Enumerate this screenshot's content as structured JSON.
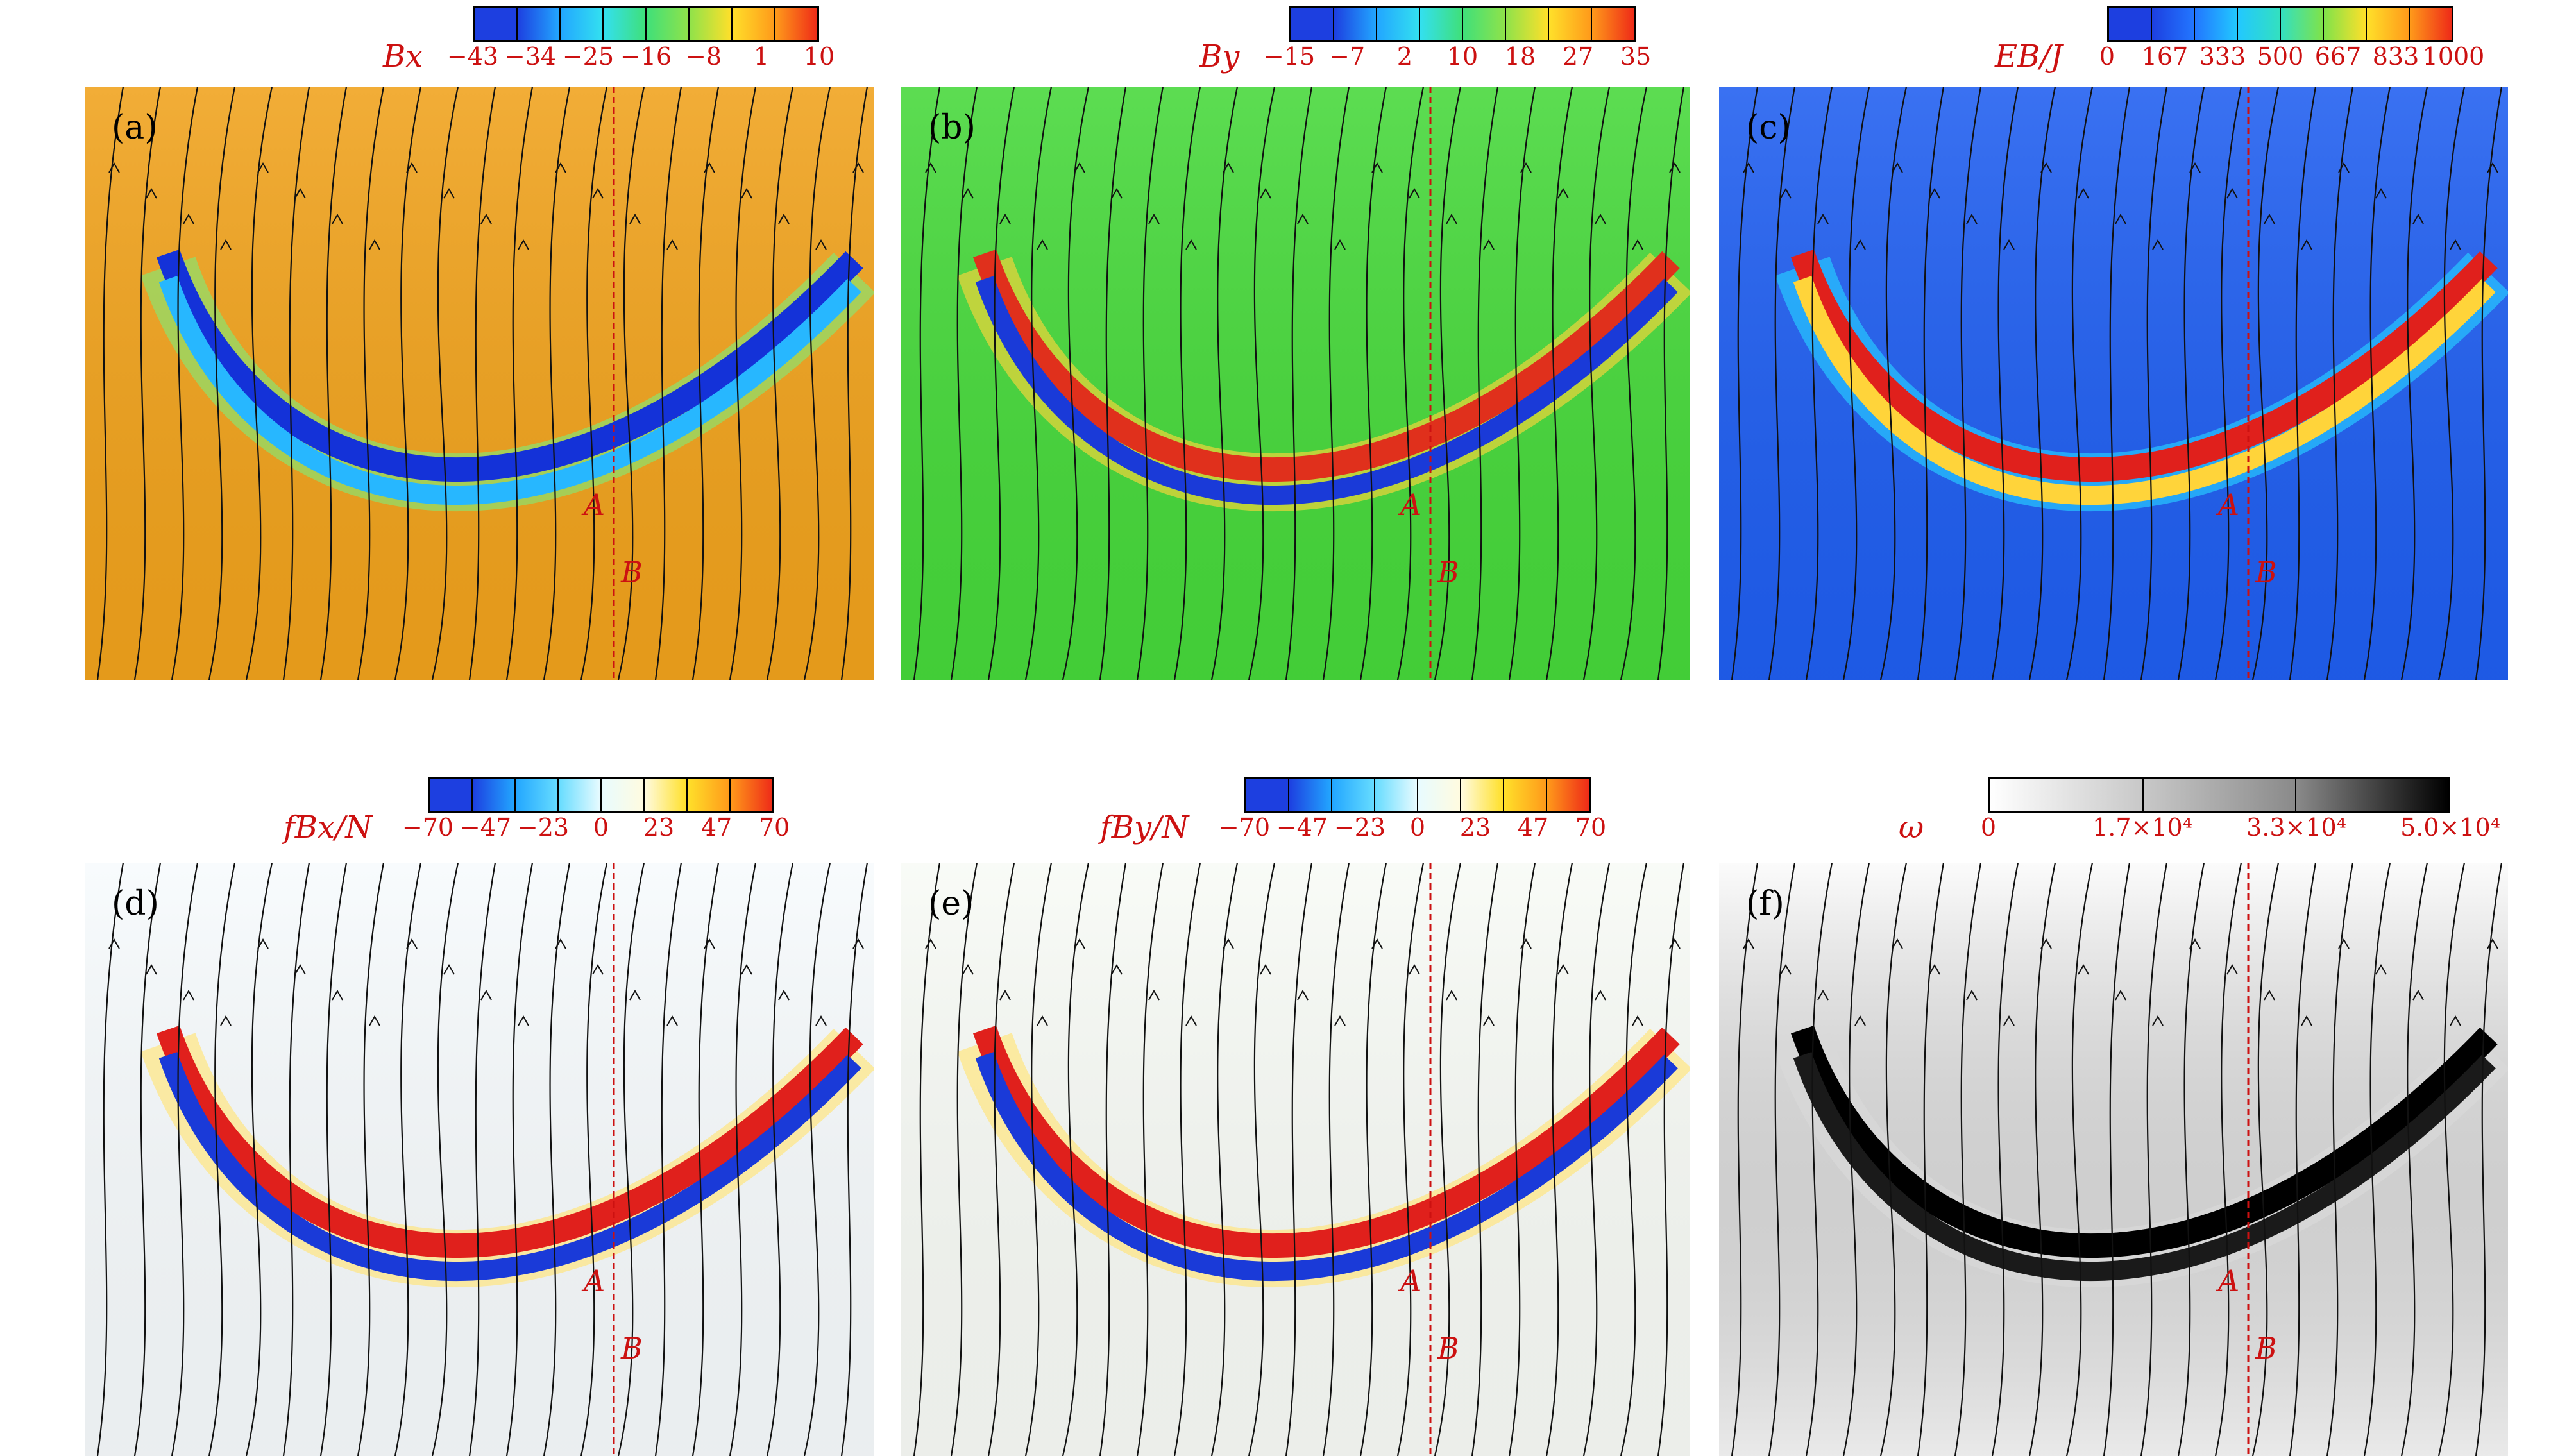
{
  "panels": [
    {
      "id": "a",
      "label": "(a)",
      "cbar_title": "B_x",
      "cbar_title_display": "Bx",
      "ticks": [
        "−43",
        "−34",
        "−25",
        "−16",
        "−8",
        "1",
        "10"
      ],
      "cbar_colors": [
        "#1d3fe0",
        "#22a6ff",
        "#33e0f0",
        "#3fe07a",
        "#8fe24a",
        "#ffe02a",
        "#ff9a1a",
        "#ee2b18"
      ],
      "background": "#f0a21c",
      "band_colors": [
        "#1432d8",
        "#27b7ff",
        "#8ce36e"
      ],
      "point_a": "A",
      "point_b": "B"
    },
    {
      "id": "b",
      "label": "(b)",
      "cbar_title_display": "By",
      "ticks": [
        "−15",
        "−7",
        "2",
        "10",
        "18",
        "27",
        "35"
      ],
      "cbar_colors": [
        "#1d3fe0",
        "#22a6ff",
        "#33e0f0",
        "#3fe07a",
        "#8fe24a",
        "#ffe02a",
        "#ff9a1a",
        "#ee2b18"
      ],
      "background": "#46d83a",
      "band_colors": [
        "#e0301c",
        "#1a3ad8",
        "#f0d43a"
      ],
      "point_a": "A",
      "point_b": "B"
    },
    {
      "id": "c",
      "label": "(c)",
      "cbar_title_display": "EB/J",
      "ticks": [
        "0",
        "167",
        "333",
        "500",
        "667",
        "833",
        "1000"
      ],
      "cbar_colors": [
        "#1d3fe0",
        "#2276ff",
        "#22c8ff",
        "#33e0c0",
        "#7fe24a",
        "#ffe02a",
        "#ff9a1a",
        "#ee2b18"
      ],
      "background": "#1f5ef0",
      "band_colors": [
        "#e0201c",
        "#ffd43a",
        "#27c8ff"
      ],
      "point_a": "A",
      "point_b": "B"
    },
    {
      "id": "d",
      "label": "(d)",
      "cbar_title_display": "fBx/N",
      "ticks": [
        "−70",
        "−47",
        "−23",
        "0",
        "23",
        "47",
        "70"
      ],
      "cbar_colors": [
        "#1d3fe0",
        "#22a6ff",
        "#66dcff",
        "#e8fbff",
        "#fffbe0",
        "#ffe02a",
        "#ff9a1a",
        "#ee2b18"
      ],
      "background": "#f7fbfd",
      "band_colors": [
        "#e0201c",
        "#1a3ad8",
        "#ffe680"
      ],
      "point_a": "A",
      "point_b": "B"
    },
    {
      "id": "e",
      "label": "(e)",
      "cbar_title_display": "fBy/N",
      "ticks": [
        "−70",
        "−47",
        "−23",
        "0",
        "23",
        "47",
        "70"
      ],
      "cbar_colors": [
        "#1d3fe0",
        "#22a6ff",
        "#66dcff",
        "#e8fbff",
        "#fffbe0",
        "#ffe02a",
        "#ff9a1a",
        "#ee2b18"
      ],
      "background": "#f8fbf6",
      "band_colors": [
        "#e0201c",
        "#1a3ad8",
        "#ffe680"
      ],
      "point_a": "A",
      "point_b": "B"
    },
    {
      "id": "f",
      "label": "(f)",
      "cbar_title_display": "ω",
      "ticks": [
        "0",
        "1.7×10⁴",
        "3.3×10⁴",
        "5.0×10⁴"
      ],
      "cbar_colors": [
        "#ffffff",
        "#c8c8c8",
        "#8a8a8a",
        "#3c3c3c",
        "#000000"
      ],
      "background": "#f6f6f6",
      "band_colors": [
        "#000000",
        "#1a1a1a",
        "#d8d8d8"
      ],
      "point_a": "A",
      "point_b": "B"
    }
  ]
}
